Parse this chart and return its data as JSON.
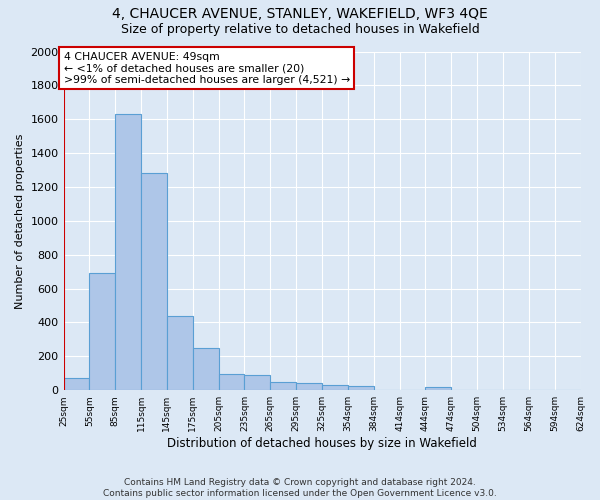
{
  "title": "4, CHAUCER AVENUE, STANLEY, WAKEFIELD, WF3 4QE",
  "subtitle": "Size of property relative to detached houses in Wakefield",
  "xlabel": "Distribution of detached houses by size in Wakefield",
  "ylabel": "Number of detached properties",
  "bar_values": [
    70,
    690,
    1630,
    1285,
    440,
    250,
    95,
    90,
    50,
    40,
    30,
    25,
    0,
    0,
    20,
    0,
    0,
    0,
    0,
    0
  ],
  "categories": [
    "25sqm",
    "55sqm",
    "85sqm",
    "115sqm",
    "145sqm",
    "175sqm",
    "205sqm",
    "235sqm",
    "265sqm",
    "295sqm",
    "325sqm",
    "354sqm",
    "384sqm",
    "414sqm",
    "444sqm",
    "474sqm",
    "504sqm",
    "534sqm",
    "564sqm",
    "594sqm",
    "624sqm"
  ],
  "bar_color": "#aec6e8",
  "bar_edge_color": "#5a9fd4",
  "bg_color": "#dce8f5",
  "grid_color": "#ffffff",
  "annotation_box_color": "#ffffff",
  "annotation_box_edge": "#cc0000",
  "red_line_color": "#cc0000",
  "annotation_line1": "4 CHAUCER AVENUE: 49sqm",
  "annotation_line2": "← <1% of detached houses are smaller (20)",
  "annotation_line3": ">99% of semi-detached houses are larger (4,521) →",
  "footer_text": "Contains HM Land Registry data © Crown copyright and database right 2024.\nContains public sector information licensed under the Open Government Licence v3.0.",
  "ylim": [
    0,
    2000
  ],
  "yticks": [
    0,
    200,
    400,
    600,
    800,
    1000,
    1200,
    1400,
    1600,
    1800,
    2000
  ]
}
